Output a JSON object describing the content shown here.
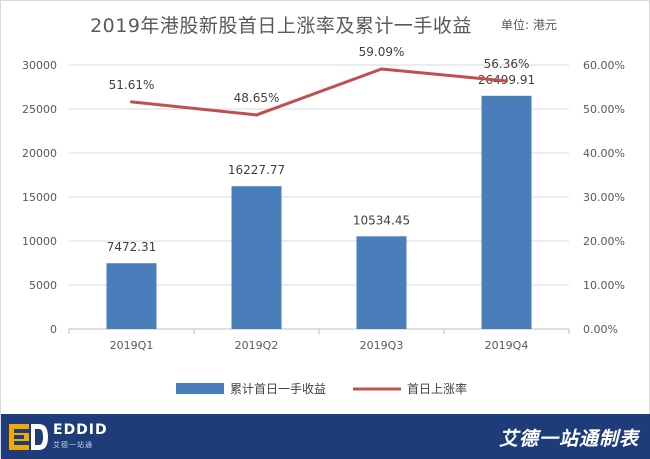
{
  "header": {
    "title": "2019年港股新股首日上涨率及累计一手收益",
    "unit_label": "单位:",
    "unit_value": "港元"
  },
  "chart_data": {
    "type": "bar",
    "categories": [
      "2019Q1",
      "2019Q2",
      "2019Q3",
      "2019Q4"
    ],
    "series": [
      {
        "name": "累计首日一手收益",
        "type": "bar",
        "axis": "left",
        "color": "#4a7ebb",
        "values": [
          7472.31,
          16227.77,
          10534.45,
          26499.91
        ],
        "labels": [
          "7472.31",
          "16227.77",
          "10534.45",
          "26499.91"
        ]
      },
      {
        "name": "首日上涨率",
        "type": "line",
        "axis": "right",
        "color": "#c0504d",
        "values": [
          51.61,
          48.65,
          59.09,
          56.36
        ],
        "labels": [
          "51.61%",
          "48.65%",
          "59.09%",
          "56.36%"
        ]
      }
    ],
    "y_left": {
      "min": 0,
      "max": 30000,
      "ticks": [
        "0",
        "5000",
        "10000",
        "15000",
        "20000",
        "25000",
        "30000"
      ]
    },
    "y_right": {
      "min": 0,
      "max": 60,
      "ticks": [
        "0.00%",
        "10.00%",
        "20.00%",
        "30.00%",
        "40.00%",
        "50.00%",
        "60.00%"
      ]
    },
    "grid": true,
    "legend_position": "bottom"
  },
  "footer": {
    "logo_name": "EDDID",
    "logo_sub": "艾德一站通",
    "brand": "艾德一站通制表",
    "background_color": "#1e3c7a"
  }
}
